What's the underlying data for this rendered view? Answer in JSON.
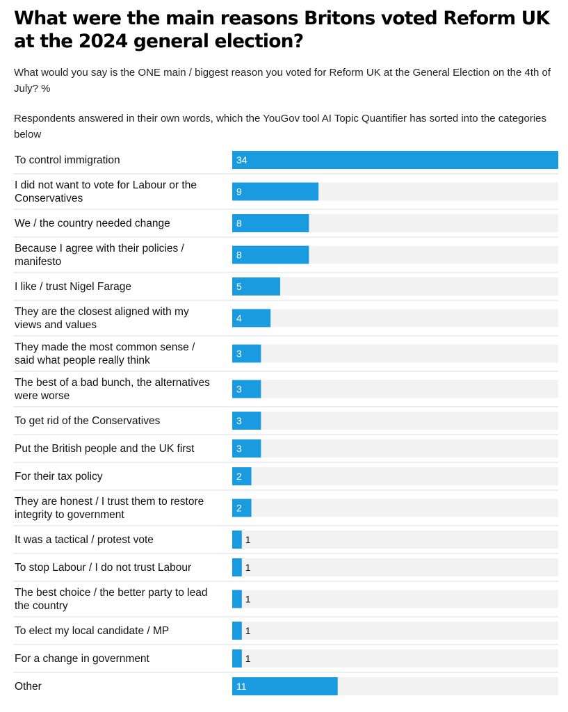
{
  "header": {
    "title": "What were the main reasons Britons voted Reform UK at the 2024 general election?",
    "subtitle": "What would you say is the ONE main / biggest reason you voted for Reform UK at the General Election on the 4th of July? %",
    "note": "Respondents answered in their own words, which the YouGov tool AI Topic Quantifier has sorted into the categories below"
  },
  "colors": {
    "bar": "#1a9be0",
    "track": "#f2f2f2",
    "divider": "#dddddd",
    "value_inside": "#ffffff",
    "value_outside": "#111111"
  },
  "chart_data": {
    "type": "bar",
    "orientation": "horizontal",
    "categories": [
      [
        "To control immigration"
      ],
      [
        "I did not want to vote for Labour or the",
        "Conservatives"
      ],
      [
        "We / the country needed change"
      ],
      [
        "Because I agree with their policies /",
        "manifesto"
      ],
      [
        "I like / trust Nigel Farage"
      ],
      [
        "They are the closest aligned with my",
        "views and values"
      ],
      [
        "They made the most common sense /",
        "said what people really think"
      ],
      [
        "The best of a bad bunch, the alternatives",
        "were worse"
      ],
      [
        "To get rid of the Conservatives"
      ],
      [
        "Put the British people and the UK first"
      ],
      [
        "For their tax policy"
      ],
      [
        "They are honest / I trust them to restore",
        "integrity to government"
      ],
      [
        "It was a tactical / protest vote"
      ],
      [
        "To stop Labour / I do not trust Labour"
      ],
      [
        "The best choice / the better party to lead",
        "the country"
      ],
      [
        "To elect my local candidate / MP"
      ],
      [
        "For a change in government"
      ],
      [
        "Other"
      ]
    ],
    "values": [
      34,
      9,
      8,
      8,
      5,
      4,
      3,
      3,
      3,
      3,
      2,
      2,
      1,
      1,
      1,
      1,
      1,
      11
    ],
    "xlim": [
      0,
      34
    ],
    "grid": false,
    "legend": "none"
  }
}
